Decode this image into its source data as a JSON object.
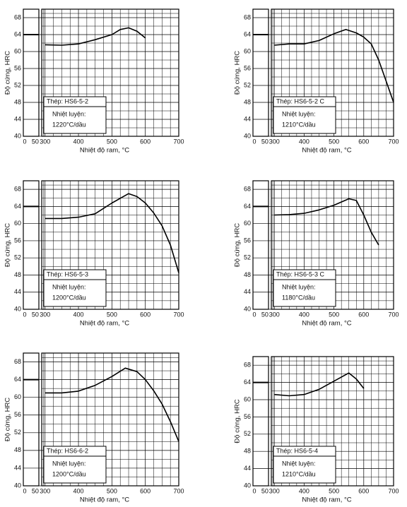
{
  "chart_data": [
    {
      "type": "line",
      "x_label": "Nhiệt độ ram, °C",
      "y_label": "Độ cứng, HRC",
      "annotations": [
        "Thép: HS6-5-2",
        "Nhiệt luyện:",
        "1220°C/dầu"
      ],
      "xlim": [
        0,
        700
      ],
      "x_break": [
        65,
        290
      ],
      "xticks": [
        0,
        50,
        300,
        400,
        500,
        600,
        700
      ],
      "ylim": [
        40,
        70
      ],
      "yticks": [
        40,
        44,
        48,
        52,
        56,
        60,
        64,
        68
      ],
      "grid": true,
      "as_quenched": 64,
      "series": [
        {
          "color": "#000000",
          "x": [
            300,
            350,
            400,
            450,
            500,
            525,
            550,
            575,
            600
          ],
          "values": [
            61.6,
            61.5,
            61.8,
            62.8,
            64.0,
            65.2,
            65.6,
            64.8,
            63.2
          ]
        }
      ]
    },
    {
      "type": "line",
      "x_label": "Nhiệt độ ram, °C",
      "y_label": "Độ cứng, HRC",
      "annotations": [
        "Thép: HS6-5-2 C",
        "Nhiệt luyện:",
        "1210°C/dầu"
      ],
      "xlim": [
        0,
        700
      ],
      "x_break": [
        65,
        290
      ],
      "xticks": [
        0,
        50,
        300,
        400,
        500,
        600,
        700
      ],
      "ylim": [
        40,
        70
      ],
      "yticks": [
        40,
        44,
        48,
        52,
        56,
        60,
        64,
        68
      ],
      "grid": true,
      "as_quenched": 64,
      "series": [
        {
          "color": "#000000",
          "x": [
            300,
            350,
            400,
            450,
            500,
            540,
            575,
            600,
            625,
            650,
            675,
            700
          ],
          "values": [
            61.5,
            61.8,
            61.8,
            62.6,
            64.2,
            65.2,
            64.4,
            63.4,
            61.8,
            58,
            53,
            48
          ]
        }
      ]
    },
    {
      "type": "line",
      "x_label": "Nhiệt độ ram, °C",
      "y_label": "Độ cứng, HRC",
      "annotations": [
        "Thép: HS6-5-3",
        "Nhiệt luyện:",
        "1200°C/dầu"
      ],
      "xlim": [
        0,
        700
      ],
      "x_break": [
        65,
        290
      ],
      "xticks": [
        0,
        50,
        300,
        400,
        500,
        600,
        700
      ],
      "ylim": [
        40,
        70
      ],
      "yticks": [
        40,
        44,
        48,
        52,
        56,
        60,
        64,
        68
      ],
      "grid": true,
      "as_quenched": 64,
      "series": [
        {
          "color": "#000000",
          "x": [
            300,
            350,
            400,
            450,
            500,
            550,
            575,
            600,
            625,
            650,
            675,
            700
          ],
          "values": [
            61.2,
            61.2,
            61.5,
            62.3,
            64.8,
            67.0,
            66.3,
            64.8,
            62.5,
            59.5,
            55,
            48.5
          ]
        }
      ]
    },
    {
      "type": "line",
      "x_label": "Nhiệt độ ram, °C",
      "y_label": "Độ cứng, HRC",
      "annotations": [
        "Thép: HS6-5-3 C",
        "Nhiệt luyện:",
        "1180°C/dầu"
      ],
      "xlim": [
        0,
        700
      ],
      "x_break": [
        65,
        290
      ],
      "xticks": [
        0,
        50,
        300,
        400,
        500,
        600,
        700
      ],
      "ylim": [
        40,
        70
      ],
      "yticks": [
        40,
        44,
        48,
        52,
        56,
        60,
        64,
        68
      ],
      "grid": true,
      "as_quenched": 64,
      "series": [
        {
          "color": "#000000",
          "x": [
            300,
            350,
            400,
            450,
            500,
            550,
            575,
            600,
            625,
            650
          ],
          "values": [
            62,
            62.1,
            62.4,
            63.2,
            64.3,
            65.8,
            65.4,
            62,
            58,
            55
          ]
        }
      ]
    },
    {
      "type": "line",
      "x_label": "Nhiệt độ ram, °C",
      "y_label": "Độ cứng, HRC",
      "annotations": [
        "Thép: HS6-6-2",
        "Nhiệt luyện:",
        "1200°C/dầu"
      ],
      "xlim": [
        0,
        700
      ],
      "x_break": [
        65,
        290
      ],
      "xticks": [
        0,
        50,
        300,
        400,
        500,
        600,
        700
      ],
      "ylim": [
        40,
        70
      ],
      "yticks": [
        40,
        44,
        48,
        52,
        56,
        60,
        64,
        68
      ],
      "grid": true,
      "as_quenched": 64,
      "series": [
        {
          "color": "#000000",
          "x": [
            300,
            350,
            400,
            450,
            500,
            540,
            575,
            600,
            625,
            650,
            675,
            700
          ],
          "values": [
            61,
            61,
            61.4,
            62.7,
            64.7,
            66.6,
            65.8,
            64,
            61.5,
            58.5,
            54.5,
            50
          ]
        }
      ]
    },
    {
      "type": "line",
      "x_label": "Nhiệt độ ram, °C",
      "y_label": "Độ cứng, HRC",
      "annotations": [
        "Thép: HS6-5-4",
        "Nhiệt luyện:",
        "1210°C/dầu"
      ],
      "xlim": [
        0,
        700
      ],
      "x_break": [
        65,
        290
      ],
      "xticks": [
        0,
        50,
        300,
        400,
        500,
        600,
        700
      ],
      "ylim": [
        40,
        70
      ],
      "yticks": [
        40,
        44,
        48,
        52,
        56,
        60,
        64,
        68
      ],
      "grid": true,
      "as_quenched": 64,
      "series": [
        {
          "color": "#000000",
          "x": [
            300,
            350,
            400,
            450,
            500,
            550,
            575,
            600
          ],
          "values": [
            61.2,
            60.9,
            61.2,
            62.4,
            64.3,
            66.2,
            64.8,
            62.6
          ]
        }
      ]
    }
  ]
}
